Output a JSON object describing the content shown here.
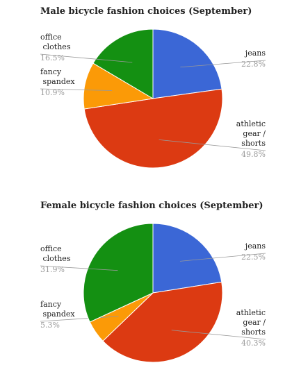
{
  "chart_data": [
    {
      "type": "pie",
      "title": "Male bicycle fashion choices (September)",
      "categories": [
        "jeans",
        "athletic gear / shorts",
        "fancy spandex",
        "office clothes"
      ],
      "values": [
        22.8,
        49.8,
        10.9,
        16.5
      ],
      "value_labels": [
        "22.8%",
        "49.8%",
        "10.9%",
        "16.5%"
      ],
      "colors": [
        "#3b67d6",
        "#dc3a12",
        "#fb9a07",
        "#149012"
      ]
    },
    {
      "type": "pie",
      "title": "Female bicycle fashion choices (September)",
      "categories": [
        "jeans",
        "athletic gear / shorts",
        "fancy spandex",
        "office clothes"
      ],
      "values": [
        22.5,
        40.3,
        5.3,
        31.9
      ],
      "value_labels": [
        "22.5%",
        "40.3%",
        "5.3%",
        "31.9%"
      ],
      "colors": [
        "#3b67d6",
        "#dc3a12",
        "#fb9a07",
        "#149012"
      ]
    }
  ]
}
